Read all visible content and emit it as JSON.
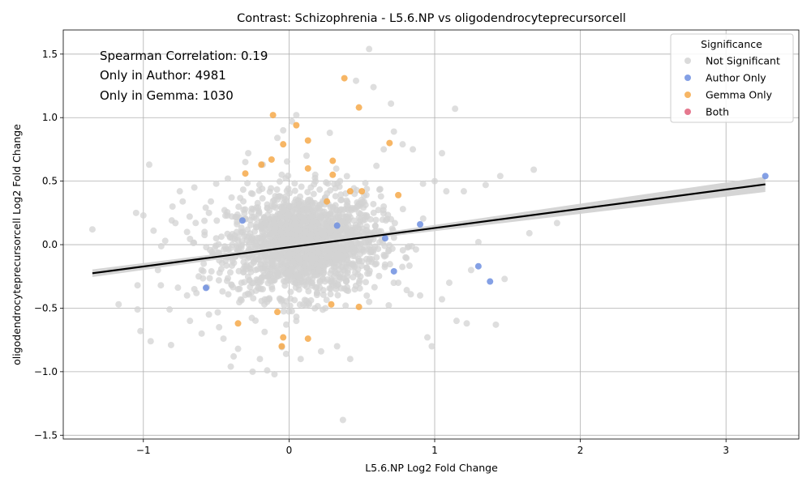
{
  "chart_data": {
    "type": "scatter",
    "title": "Contrast: Schizophrenia - L5.6.NP vs oligodendrocyteprecursorcell",
    "xlabel": "L5.6.NP Log2 Fold Change",
    "ylabel": "oligodendrocyteprecursorcell Log2 Fold Change",
    "xlim": [
      -1.55,
      3.5
    ],
    "ylim": [
      -1.53,
      1.69
    ],
    "xticks": [
      -1,
      0,
      1,
      2,
      3
    ],
    "yticks": [
      -1.5,
      -1.0,
      -0.5,
      0.0,
      0.5,
      1.0,
      1.5
    ],
    "xtick_labels": [
      "−1",
      "0",
      "1",
      "2",
      "3"
    ],
    "ytick_labels": [
      "−1.5",
      "−1.0",
      "−0.5",
      "0.0",
      "0.5",
      "1.0",
      "1.5"
    ],
    "grid": true,
    "annotations": [
      "Spearman Correlation: 0.19",
      "Only in Author: 4981",
      "Only in Gemma: 1030"
    ],
    "legend": {
      "title": "Significance",
      "placement": "top-right",
      "entries": [
        {
          "label": "Not Significant",
          "color": "#d3d3d3"
        },
        {
          "label": "Author Only",
          "color": "#6f8fe0"
        },
        {
          "label": "Gemma Only",
          "color": "#f6a94a"
        },
        {
          "label": "Both",
          "color": "#e0607a"
        }
      ]
    },
    "regression_line": {
      "x": [
        -1.35,
        3.27
      ],
      "y": [
        -0.225,
        0.475
      ],
      "color": "#000000"
    },
    "series": [
      {
        "name": "Not Significant",
        "color": "#d3d3d3",
        "points": [
          [
            -1.35,
            0.12
          ],
          [
            -1.17,
            -0.47
          ],
          [
            -1.05,
            0.25
          ],
          [
            -1.04,
            -0.32
          ],
          [
            -1.04,
            -0.51
          ],
          [
            -1.02,
            -0.68
          ],
          [
            -1.0,
            0.23
          ],
          [
            -0.96,
            0.63
          ],
          [
            -0.95,
            -0.76
          ],
          [
            -0.93,
            0.11
          ],
          [
            -0.9,
            -0.2
          ],
          [
            -0.88,
            -0.32
          ],
          [
            -0.85,
            0.03
          ],
          [
            -0.82,
            -0.51
          ],
          [
            -0.81,
            -0.79
          ],
          [
            -0.8,
            0.3
          ],
          [
            -0.78,
            0.17
          ],
          [
            -0.75,
            0.42
          ],
          [
            -0.73,
            0.34
          ],
          [
            -0.7,
            -0.4
          ],
          [
            -0.68,
            -0.6
          ],
          [
            -0.65,
            0.45
          ],
          [
            -0.62,
            -0.25
          ],
          [
            -0.6,
            -0.7
          ],
          [
            -0.58,
            0.1
          ],
          [
            -0.55,
            -0.55
          ],
          [
            -0.5,
            0.48
          ],
          [
            -0.48,
            -0.65
          ],
          [
            -0.45,
            -0.74
          ],
          [
            -0.42,
            0.52
          ],
          [
            -0.4,
            -0.96
          ],
          [
            -0.38,
            -0.88
          ],
          [
            -0.35,
            -0.82
          ],
          [
            -0.3,
            0.65
          ],
          [
            -0.28,
            0.72
          ],
          [
            -0.25,
            -1.0
          ],
          [
            -0.2,
            -0.9
          ],
          [
            -0.18,
            0.63
          ],
          [
            -0.15,
            -0.99
          ],
          [
            -0.1,
            -1.02
          ],
          [
            -0.08,
            0.84
          ],
          [
            -0.04,
            0.9
          ],
          [
            -0.02,
            -0.86
          ],
          [
            0.02,
            0.97
          ],
          [
            0.05,
            1.02
          ],
          [
            0.08,
            -0.9
          ],
          [
            0.12,
            0.7
          ],
          [
            0.18,
            0.55
          ],
          [
            0.22,
            -0.84
          ],
          [
            0.28,
            0.88
          ],
          [
            0.33,
            -0.8
          ],
          [
            0.37,
            -1.38
          ],
          [
            0.42,
            -0.9
          ],
          [
            0.46,
            1.29
          ],
          [
            0.55,
            1.54
          ],
          [
            0.58,
            1.24
          ],
          [
            0.6,
            0.62
          ],
          [
            0.65,
            0.75
          ],
          [
            0.7,
            1.11
          ],
          [
            0.72,
            0.89
          ],
          [
            0.78,
            0.79
          ],
          [
            0.85,
            0.75
          ],
          [
            0.92,
            0.48
          ],
          [
            1.0,
            0.5
          ],
          [
            1.05,
            0.72
          ],
          [
            1.08,
            0.42
          ],
          [
            1.1,
            -0.3
          ],
          [
            1.14,
            1.07
          ],
          [
            1.15,
            -0.6
          ],
          [
            1.2,
            0.42
          ],
          [
            1.22,
            -0.62
          ],
          [
            1.25,
            -0.2
          ],
          [
            1.3,
            0.02
          ],
          [
            1.35,
            0.47
          ],
          [
            1.42,
            -0.63
          ],
          [
            1.45,
            0.54
          ],
          [
            1.48,
            -0.27
          ],
          [
            1.65,
            0.09
          ],
          [
            1.68,
            0.59
          ],
          [
            1.84,
            0.17
          ],
          [
            0.98,
            -0.8
          ],
          [
            0.95,
            -0.73
          ],
          [
            1.05,
            -0.43
          ],
          [
            0.9,
            -0.4
          ],
          [
            -0.3,
            0.2
          ],
          [
            -0.2,
            -0.3
          ],
          [
            -0.1,
            0.1
          ],
          [
            0.0,
            -0.1
          ],
          [
            0.1,
            0.2
          ],
          [
            0.2,
            -0.2
          ],
          [
            0.3,
            0.15
          ],
          [
            0.4,
            -0.25
          ],
          [
            0.5,
            0.1
          ],
          [
            0.6,
            -0.15
          ],
          [
            0.7,
            0.2
          ],
          [
            0.8,
            -0.1
          ],
          [
            -0.4,
            -0.1
          ],
          [
            -0.5,
            0.05
          ],
          [
            -0.6,
            -0.2
          ],
          [
            -0.7,
            0.1
          ],
          [
            0.15,
            0.45
          ],
          [
            -0.15,
            -0.45
          ],
          [
            0.25,
            -0.5
          ],
          [
            -0.25,
            0.4
          ],
          [
            0.45,
            0.4
          ],
          [
            -0.35,
            -0.35
          ],
          [
            0.55,
            -0.45
          ],
          [
            0.35,
            0.5
          ],
          [
            -0.05,
            0.55
          ],
          [
            0.05,
            -0.6
          ],
          [
            0.65,
            0.3
          ],
          [
            -0.55,
            0.25
          ],
          [
            0.75,
            -0.3
          ],
          [
            -0.65,
            -0.35
          ]
        ]
      },
      {
        "name": "Author Only",
        "color": "#6f8fe0",
        "points": [
          [
            3.27,
            0.54
          ],
          [
            1.3,
            -0.17
          ],
          [
            1.38,
            -0.29
          ],
          [
            0.9,
            0.16
          ],
          [
            0.72,
            -0.21
          ],
          [
            0.66,
            0.05
          ],
          [
            0.33,
            0.15
          ],
          [
            -0.57,
            -0.34
          ],
          [
            -0.32,
            0.19
          ]
        ]
      },
      {
        "name": "Gemma Only",
        "color": "#f6a94a",
        "points": [
          [
            0.38,
            1.31
          ],
          [
            0.48,
            1.08
          ],
          [
            -0.11,
            1.02
          ],
          [
            0.05,
            0.94
          ],
          [
            0.13,
            0.82
          ],
          [
            0.69,
            0.8
          ],
          [
            -0.04,
            0.79
          ],
          [
            -0.12,
            0.67
          ],
          [
            0.3,
            0.66
          ],
          [
            -0.19,
            0.63
          ],
          [
            0.13,
            0.6
          ],
          [
            -0.3,
            0.56
          ],
          [
            0.3,
            0.55
          ],
          [
            0.42,
            0.42
          ],
          [
            0.5,
            0.42
          ],
          [
            0.75,
            0.39
          ],
          [
            0.26,
            0.34
          ],
          [
            0.29,
            -0.47
          ],
          [
            0.48,
            -0.49
          ],
          [
            -0.08,
            -0.53
          ],
          [
            -0.35,
            -0.62
          ],
          [
            -0.04,
            -0.73
          ],
          [
            0.13,
            -0.74
          ],
          [
            -0.05,
            -0.8
          ]
        ]
      },
      {
        "name": "Both",
        "color": "#e0607a",
        "points": []
      }
    ]
  }
}
